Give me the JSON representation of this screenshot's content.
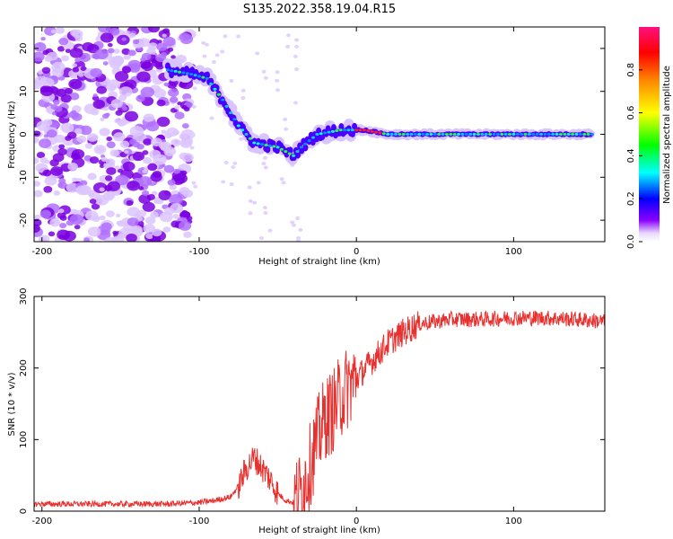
{
  "title": "S135.2022.358.19.04.R15",
  "chart_data": [
    {
      "type": "heatmap",
      "xlabel": "Height of straight line (km)",
      "ylabel": "Frequency (Hz)",
      "xlim": [
        -205,
        158
      ],
      "ylim": [
        -25,
        25
      ],
      "xticks": [
        -200,
        -100,
        0,
        100
      ],
      "yticks": [
        -20,
        -10,
        0,
        10,
        20
      ],
      "colorbar": {
        "label": "Normalized spectral amplitude",
        "range": [
          0,
          1
        ],
        "ticks": [
          0.0,
          0.2,
          0.4,
          0.6,
          0.8
        ]
      },
      "ridge": [
        {
          "x": -120,
          "y": 15
        },
        {
          "x": -105,
          "y": 14
        },
        {
          "x": -95,
          "y": 13
        },
        {
          "x": -85,
          "y": 8
        },
        {
          "x": -75,
          "y": 2
        },
        {
          "x": -65,
          "y": -2
        },
        {
          "x": -50,
          "y": -3
        },
        {
          "x": -40,
          "y": -5
        },
        {
          "x": -35,
          "y": -3
        },
        {
          "x": -25,
          "y": 0
        },
        {
          "x": -10,
          "y": 1
        },
        {
          "x": 5,
          "y": 1
        },
        {
          "x": 20,
          "y": 0
        },
        {
          "x": 60,
          "y": 0
        },
        {
          "x": 100,
          "y": 0
        },
        {
          "x": 150,
          "y": 0
        }
      ]
    },
    {
      "type": "line",
      "xlabel": "Height of straight line (km)",
      "ylabel": "SNR (10 * v/v)",
      "xlim": [
        -205,
        158
      ],
      "ylim": [
        0,
        300
      ],
      "xticks": [
        -200,
        -100,
        0,
        100
      ],
      "yticks": [
        0,
        100,
        200,
        300
      ],
      "series": [
        {
          "color": "#e8302e",
          "x": [
            -205,
            -180,
            -150,
            -120,
            -100,
            -90,
            -80,
            -75,
            -70,
            -65,
            -60,
            -55,
            -50,
            -45,
            -40,
            -35,
            -30,
            -25,
            -20,
            -15,
            -10,
            -5,
            0,
            10,
            20,
            30,
            40,
            60,
            80,
            100,
            120,
            140,
            158
          ],
          "y": [
            10,
            10,
            10,
            10,
            12,
            15,
            20,
            35,
            60,
            75,
            60,
            45,
            25,
            15,
            12,
            30,
            60,
            100,
            130,
            140,
            160,
            175,
            185,
            210,
            235,
            250,
            262,
            268,
            268,
            270,
            270,
            268,
            265
          ]
        }
      ]
    }
  ]
}
